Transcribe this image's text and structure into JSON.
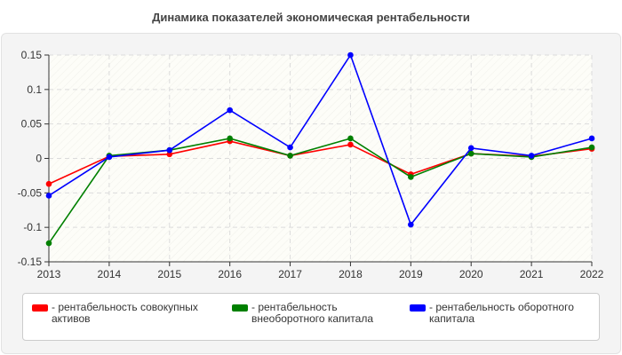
{
  "chart_data": {
    "type": "line",
    "title": "Динамика показателей экономическая рентабельности",
    "xlabel": "",
    "ylabel": "",
    "categories": [
      "2013",
      "2014",
      "2015",
      "2016",
      "2017",
      "2018",
      "2019",
      "2020",
      "2021",
      "2022"
    ],
    "ylim": [
      -0.15,
      0.15
    ],
    "yticks": [
      "0.15",
      "0.1",
      "0.05",
      "0",
      "-0.05",
      "-0.1",
      "-0.15"
    ],
    "grid": true,
    "legend_position": "bottom",
    "series": [
      {
        "name": "- рентабельность совокупных активов",
        "color": "#ff0000",
        "values": [
          -0.037,
          0.003,
          0.006,
          0.025,
          0.004,
          0.02,
          -0.023,
          0.007,
          0.003,
          0.014
        ]
      },
      {
        "name": "- рентабельность внеоборотного капитала",
        "color": "#008000",
        "values": [
          -0.123,
          0.004,
          0.012,
          0.029,
          0.004,
          0.029,
          -0.027,
          0.007,
          0.002,
          0.016
        ]
      },
      {
        "name": "- рентабельность оборотного капитала",
        "color": "#0000ff",
        "values": [
          -0.054,
          0.002,
          0.012,
          0.07,
          0.016,
          0.15,
          -0.096,
          0.015,
          0.004,
          0.029
        ]
      }
    ]
  }
}
